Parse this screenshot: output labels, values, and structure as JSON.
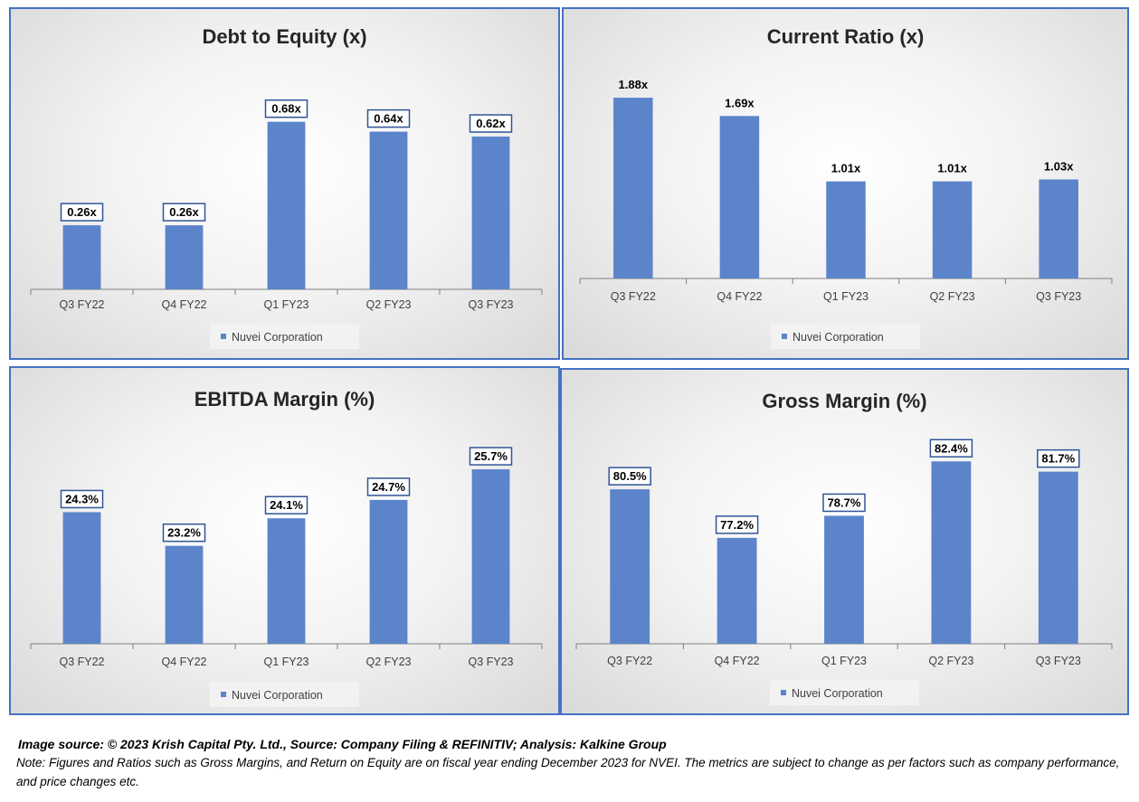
{
  "chart_data": [
    {
      "type": "bar",
      "title": "Debt to Equity (x)",
      "categories": [
        "Q3 FY22",
        "Q4 FY22",
        "Q1 FY23",
        "Q2 FY23",
        "Q3 FY23"
      ],
      "series": [
        {
          "name": "Nuvei Corporation",
          "values": [
            0.26,
            0.26,
            0.68,
            0.64,
            0.62
          ]
        }
      ],
      "data_labels": [
        "0.26x",
        "0.26x",
        "0.68x",
        "0.64x",
        "0.62x"
      ],
      "labels_boxed": true,
      "ylim": [
        0,
        0.8
      ],
      "legend": "bottom",
      "grid": false,
      "bar_color": "#5b84cb"
    },
    {
      "type": "bar",
      "title": "Current Ratio (x)",
      "categories": [
        "Q3 FY22",
        "Q4 FY22",
        "Q1 FY23",
        "Q2 FY23",
        "Q3 FY23"
      ],
      "series": [
        {
          "name": "Nuvei Corporation",
          "values": [
            1.88,
            1.69,
            1.01,
            1.01,
            1.03
          ]
        }
      ],
      "data_labels": [
        "1.88x",
        "1.69x",
        "1.01x",
        "1.01x",
        "1.03x"
      ],
      "labels_boxed": false,
      "ylim": [
        0,
        2.05
      ],
      "legend": "bottom",
      "grid": false,
      "bar_color": "#5b84cb"
    },
    {
      "type": "bar",
      "title": "EBITDA Margin (%)",
      "categories": [
        "Q3 FY22",
        "Q4 FY22",
        "Q1 FY23",
        "Q2 FY23",
        "Q3 FY23"
      ],
      "series": [
        {
          "name": "Nuvei Corporation",
          "values": [
            24.3,
            23.2,
            24.1,
            24.7,
            25.7
          ]
        }
      ],
      "data_labels": [
        "24.3%",
        "23.2%",
        "24.1%",
        "24.7%",
        "25.7%"
      ],
      "labels_boxed": true,
      "ylim": [
        20,
        26.5
      ],
      "legend": "bottom",
      "grid": false,
      "bar_color": "#5b84cb"
    },
    {
      "type": "bar",
      "title": "Gross Margin (%)",
      "categories": [
        "Q3 FY22",
        "Q4 FY22",
        "Q1 FY23",
        "Q2 FY23",
        "Q3 FY23"
      ],
      "series": [
        {
          "name": "Nuvei Corporation",
          "values": [
            80.5,
            77.2,
            78.7,
            82.4,
            81.7
          ]
        }
      ],
      "data_labels": [
        "80.5%",
        "77.2%",
        "78.7%",
        "82.4%",
        "81.7%"
      ],
      "labels_boxed": true,
      "ylim": [
        70,
        83.4
      ],
      "legend": "bottom",
      "grid": false,
      "bar_color": "#5b84cb"
    }
  ],
  "footer": {
    "source": "Image source: © 2023 Krish Capital Pty. Ltd., Source: Company Filing & REFINITIV; Analysis: Kalkine Group",
    "note": "Note: Figures and Ratios such as  Gross Margins, and Return on Equity are on fiscal year ending  December  2023  for NVEI. The metrics are subject to change as per factors such as company performance, and price changes etc."
  }
}
